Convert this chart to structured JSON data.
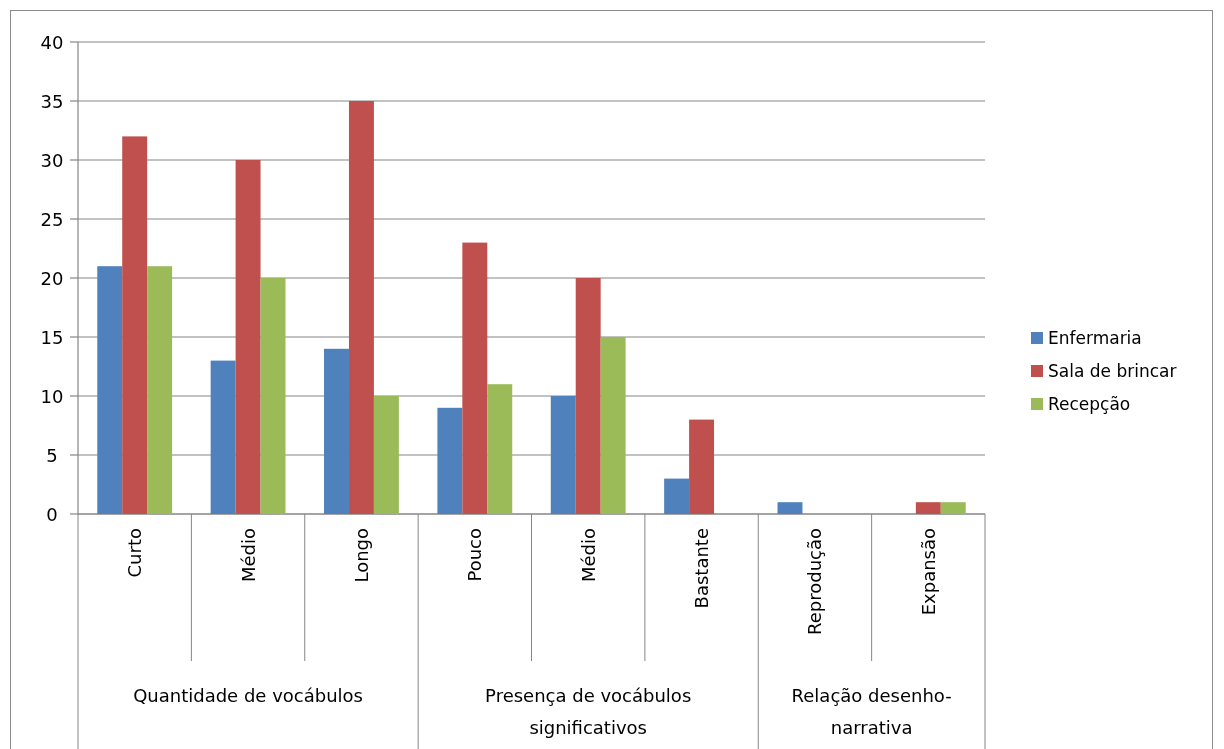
{
  "chart_data": {
    "type": "bar",
    "categories": [
      "Curto",
      "Médio",
      "Longo",
      "Pouco",
      "Médio",
      "Bastante",
      "Reprodução",
      "Expansão"
    ],
    "series": [
      {
        "name": "Enfermaria",
        "color": "#4f81bd",
        "values": [
          21,
          13,
          14,
          9,
          10,
          3,
          1,
          0
        ]
      },
      {
        "name": "Sala de brincar",
        "color": "#c0504d",
        "values": [
          32,
          30,
          35,
          23,
          20,
          8,
          0,
          1
        ]
      },
      {
        "name": "Recepção",
        "color": "#9bbb59",
        "values": [
          21,
          20,
          10,
          11,
          15,
          0,
          0,
          1
        ]
      }
    ],
    "ylim": [
      0,
      40
    ],
    "yticks": [
      0,
      5,
      10,
      15,
      20,
      25,
      30,
      35,
      40
    ],
    "grid": "y",
    "legend": "right",
    "annotations": [
      "Quantidade de vocábulos",
      "Presença de vocábulos significativos",
      "Relação desenho-narrativa"
    ]
  }
}
